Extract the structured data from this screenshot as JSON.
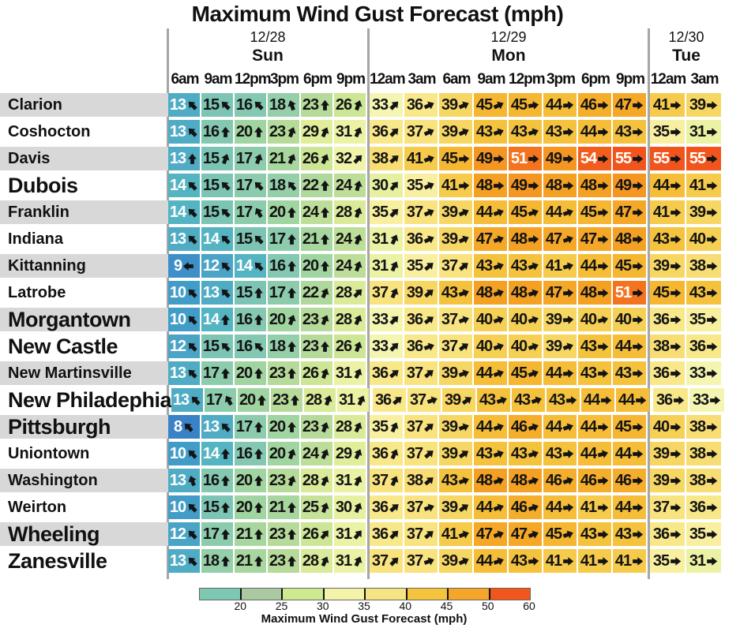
{
  "title": "Maximum Wind Gust Forecast (mph)",
  "day_groups": [
    {
      "date": "12/28",
      "day": "Sun",
      "times": [
        "6am",
        "9am",
        "12pm",
        "3pm",
        "6pm",
        "9pm"
      ]
    },
    {
      "date": "12/29",
      "day": "Mon",
      "times": [
        "12am",
        "3am",
        "6am",
        "9am",
        "12pm",
        "3pm",
        "6pm",
        "9pm"
      ]
    },
    {
      "date": "12/30",
      "day": "Tue",
      "times": [
        "12am",
        "3am"
      ]
    }
  ],
  "chart_data": {
    "type": "heatmap",
    "title": "Maximum Wind Gust Forecast (mph)",
    "unit": "mph",
    "dir_unit": "degrees_clockwise_from_north_arrow_points_toward",
    "columns": [
      "12/28 6am",
      "12/28 9am",
      "12/28 12pm",
      "12/28 3pm",
      "12/28 6pm",
      "12/28 9pm",
      "12/29 12am",
      "12/29 3am",
      "12/29 6am",
      "12/29 9am",
      "12/29 12pm",
      "12/29 3pm",
      "12/29 6pm",
      "12/29 9pm",
      "12/30 12am",
      "12/30 3am"
    ],
    "rows": [
      {
        "city": "Clarion",
        "emphasis": false,
        "values": [
          13,
          15,
          16,
          18,
          23,
          26,
          33,
          36,
          39,
          45,
          45,
          44,
          46,
          47,
          41,
          39
        ],
        "dirs": [
          315,
          315,
          315,
          340,
          0,
          20,
          45,
          65,
          65,
          65,
          80,
          85,
          90,
          90,
          90,
          90
        ]
      },
      {
        "city": "Coshocton",
        "emphasis": false,
        "values": [
          13,
          16,
          20,
          23,
          29,
          31,
          36,
          37,
          39,
          43,
          43,
          43,
          44,
          43,
          35,
          31
        ],
        "dirs": [
          315,
          0,
          0,
          20,
          25,
          25,
          45,
          65,
          65,
          70,
          70,
          85,
          90,
          90,
          90,
          90
        ]
      },
      {
        "city": "Davis",
        "emphasis": false,
        "values": [
          13,
          15,
          17,
          21,
          26,
          32,
          38,
          41,
          45,
          49,
          51,
          49,
          54,
          55,
          55,
          55
        ],
        "dirs": [
          0,
          20,
          20,
          25,
          25,
          45,
          50,
          70,
          85,
          90,
          90,
          90,
          90,
          90,
          90,
          90
        ]
      },
      {
        "city": "Dubois",
        "emphasis": true,
        "values": [
          14,
          15,
          17,
          18,
          22,
          24,
          30,
          35,
          41,
          48,
          49,
          48,
          48,
          49,
          44,
          41
        ],
        "dirs": [
          315,
          315,
          315,
          320,
          0,
          15,
          40,
          65,
          85,
          90,
          90,
          90,
          90,
          90,
          90,
          90
        ]
      },
      {
        "city": "Franklin",
        "emphasis": false,
        "values": [
          14,
          15,
          17,
          20,
          24,
          28,
          35,
          37,
          39,
          44,
          45,
          44,
          45,
          47,
          41,
          39
        ],
        "dirs": [
          315,
          315,
          330,
          0,
          0,
          20,
          45,
          65,
          65,
          70,
          70,
          70,
          85,
          90,
          90,
          90
        ]
      },
      {
        "city": "Indiana",
        "emphasis": false,
        "values": [
          13,
          14,
          15,
          17,
          21,
          24,
          31,
          36,
          39,
          47,
          48,
          47,
          47,
          48,
          43,
          40
        ],
        "dirs": [
          315,
          315,
          315,
          0,
          0,
          20,
          25,
          65,
          65,
          70,
          85,
          70,
          90,
          90,
          90,
          90
        ]
      },
      {
        "city": "Kittanning",
        "emphasis": false,
        "values": [
          9,
          12,
          14,
          16,
          20,
          24,
          31,
          35,
          37,
          43,
          43,
          41,
          44,
          45,
          39,
          38
        ],
        "dirs": [
          270,
          315,
          315,
          0,
          0,
          20,
          25,
          50,
          50,
          70,
          70,
          75,
          90,
          90,
          90,
          90
        ]
      },
      {
        "city": "Latrobe",
        "emphasis": false,
        "values": [
          10,
          13,
          15,
          17,
          22,
          28,
          37,
          39,
          43,
          48,
          48,
          47,
          48,
          51,
          45,
          43
        ],
        "dirs": [
          315,
          315,
          0,
          0,
          25,
          45,
          25,
          50,
          70,
          70,
          70,
          85,
          90,
          90,
          90,
          90
        ]
      },
      {
        "city": "Morgantown",
        "emphasis": true,
        "values": [
          10,
          14,
          16,
          20,
          23,
          28,
          33,
          36,
          37,
          40,
          40,
          39,
          40,
          40,
          36,
          35
        ],
        "dirs": [
          315,
          0,
          0,
          20,
          25,
          25,
          45,
          55,
          70,
          70,
          70,
          85,
          75,
          90,
          90,
          90
        ]
      },
      {
        "city": "New Castle",
        "emphasis": true,
        "values": [
          12,
          15,
          16,
          18,
          23,
          26,
          33,
          36,
          37,
          40,
          40,
          39,
          43,
          44,
          38,
          36
        ],
        "dirs": [
          315,
          315,
          315,
          0,
          0,
          20,
          45,
          70,
          55,
          70,
          70,
          70,
          90,
          90,
          90,
          90
        ]
      },
      {
        "city": "New Martinsville",
        "emphasis": false,
        "values": [
          13,
          17,
          20,
          23,
          26,
          31,
          36,
          37,
          39,
          44,
          45,
          44,
          43,
          43,
          36,
          33
        ],
        "dirs": [
          315,
          0,
          0,
          0,
          20,
          25,
          50,
          50,
          70,
          70,
          70,
          85,
          90,
          90,
          90,
          90
        ]
      },
      {
        "city": "New Philadephia",
        "emphasis": true,
        "values": [
          13,
          17,
          20,
          23,
          28,
          31,
          36,
          37,
          39,
          43,
          43,
          43,
          44,
          44,
          36,
          33
        ],
        "dirs": [
          315,
          330,
          0,
          0,
          20,
          25,
          50,
          70,
          55,
          70,
          70,
          85,
          90,
          90,
          90,
          90
        ]
      },
      {
        "city": "Pittsburgh",
        "emphasis": true,
        "values": [
          8,
          13,
          17,
          20,
          23,
          28,
          35,
          37,
          39,
          44,
          46,
          44,
          44,
          45,
          40,
          38
        ],
        "dirs": [
          315,
          315,
          0,
          0,
          20,
          25,
          25,
          50,
          70,
          70,
          70,
          70,
          90,
          90,
          90,
          90
        ]
      },
      {
        "city": "Uniontown",
        "emphasis": false,
        "values": [
          10,
          14,
          16,
          20,
          24,
          29,
          36,
          37,
          39,
          43,
          43,
          43,
          44,
          44,
          39,
          38
        ],
        "dirs": [
          315,
          0,
          0,
          20,
          25,
          25,
          25,
          50,
          55,
          70,
          70,
          85,
          75,
          90,
          90,
          90
        ]
      },
      {
        "city": "Washington",
        "emphasis": false,
        "values": [
          13,
          16,
          20,
          23,
          28,
          31,
          37,
          38,
          43,
          48,
          48,
          46,
          46,
          46,
          39,
          38
        ],
        "dirs": [
          340,
          0,
          0,
          20,
          25,
          25,
          25,
          50,
          70,
          70,
          70,
          70,
          85,
          90,
          90,
          90
        ]
      },
      {
        "city": "Weirton",
        "emphasis": false,
        "values": [
          10,
          15,
          20,
          21,
          25,
          30,
          36,
          37,
          39,
          44,
          46,
          44,
          41,
          44,
          37,
          36
        ],
        "dirs": [
          315,
          0,
          0,
          0,
          20,
          25,
          50,
          70,
          55,
          70,
          70,
          85,
          90,
          90,
          90,
          90
        ]
      },
      {
        "city": "Wheeling",
        "emphasis": true,
        "values": [
          12,
          17,
          21,
          23,
          26,
          31,
          36,
          37,
          41,
          47,
          47,
          45,
          43,
          43,
          36,
          35
        ],
        "dirs": [
          315,
          0,
          0,
          0,
          40,
          40,
          45,
          50,
          70,
          70,
          70,
          70,
          90,
          90,
          90,
          90
        ]
      },
      {
        "city": "Zanesville",
        "emphasis": true,
        "values": [
          13,
          18,
          21,
          23,
          28,
          31,
          37,
          37,
          39,
          44,
          43,
          41,
          41,
          41,
          35,
          31
        ],
        "dirs": [
          315,
          0,
          0,
          0,
          25,
          25,
          45,
          70,
          65,
          70,
          85,
          90,
          90,
          90,
          90,
          90
        ]
      }
    ],
    "colorbar": {
      "label": "Maximum Wind Gust Forecast (mph)",
      "ticks": [
        20,
        25,
        30,
        35,
        40,
        45,
        50,
        60
      ],
      "segment_colors": [
        "#7ec7b2",
        "#aac9a0",
        "#cdea90",
        "#f3f4aa",
        "#f6e383",
        "#f5c43d",
        "#f5a529",
        "#f1561d"
      ]
    }
  },
  "colors": {
    "stripe": "#d8d8d8",
    "separator": "#a6a6a6",
    "arrow": "#141414",
    "text_dark": "#141414",
    "text_light": "#ffffff",
    "white_text_low_max": 14,
    "white_text_high_min": 51,
    "stops": [
      [
        8,
        "#3a82c6"
      ],
      [
        10,
        "#429cc8"
      ],
      [
        12,
        "#4aa4c6"
      ],
      [
        14,
        "#54b4c2"
      ],
      [
        15,
        "#7cc5b5"
      ],
      [
        18,
        "#94cfa9"
      ],
      [
        20,
        "#a0d4a0"
      ],
      [
        23,
        "#b6da9a"
      ],
      [
        26,
        "#cce695"
      ],
      [
        29,
        "#e0ee9a"
      ],
      [
        31,
        "#ebf2a3"
      ],
      [
        33,
        "#f4f5b1"
      ],
      [
        35,
        "#f8f0a0"
      ],
      [
        36,
        "#f8e88a"
      ],
      [
        38,
        "#f7dd73"
      ],
      [
        40,
        "#f6d055"
      ],
      [
        42,
        "#f5c643"
      ],
      [
        44,
        "#f5bd38"
      ],
      [
        46,
        "#f5ae2c"
      ],
      [
        48,
        "#f4a023"
      ],
      [
        50,
        "#f38c1f"
      ],
      [
        51,
        "#f3731f"
      ],
      [
        55,
        "#f1551d"
      ]
    ]
  }
}
